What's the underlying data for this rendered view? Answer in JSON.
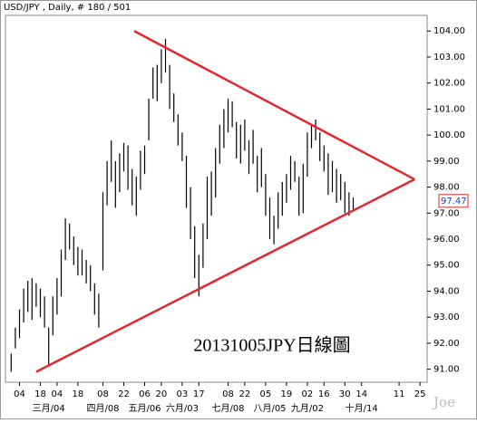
{
  "chart_data": {
    "type": "ohlc",
    "title": "USD/JPY , Daily, # 180 / 501",
    "annotation": "20131005JPY日線圖",
    "watermark": "Joe",
    "color": "#000000",
    "trend_color": "#e0282e",
    "categories": [
      null,
      null,
      "04",
      null,
      null,
      null,
      null,
      "18",
      null,
      null,
      null,
      "04",
      null,
      null,
      null,
      null,
      "18",
      null,
      null,
      null,
      null,
      null,
      "08",
      null,
      null,
      null,
      null,
      "22",
      null,
      null,
      null,
      null,
      "06",
      null,
      null,
      null,
      "20",
      null,
      null,
      null,
      null,
      "03",
      null,
      null,
      null,
      "17",
      null,
      null,
      null,
      null,
      null,
      null,
      "08",
      null,
      null,
      null,
      "22",
      null,
      null,
      null,
      null,
      "05",
      null,
      null,
      null,
      null,
      "19",
      null,
      null,
      null,
      null,
      "02",
      null,
      null,
      null,
      "16",
      null,
      null,
      null,
      null,
      "30",
      null,
      null,
      null,
      "14",
      null,
      null,
      null,
      null,
      null,
      null,
      null,
      null,
      "11",
      null,
      null,
      null,
      null,
      "25",
      null
    ],
    "month_labels": [
      null,
      null,
      null,
      null,
      null,
      null,
      null,
      null,
      null,
      "三月/04",
      null,
      null,
      null,
      null,
      null,
      null,
      null,
      null,
      null,
      null,
      null,
      null,
      "四月/08",
      null,
      null,
      null,
      null,
      null,
      null,
      null,
      null,
      null,
      "五月/06",
      null,
      null,
      null,
      null,
      null,
      null,
      null,
      null,
      "六月/03",
      null,
      null,
      null,
      null,
      null,
      null,
      null,
      null,
      null,
      null,
      "七月/08",
      null,
      null,
      null,
      null,
      null,
      null,
      null,
      null,
      null,
      "八月/05",
      null,
      null,
      null,
      null,
      null,
      null,
      null,
      null,
      "九月/02",
      null,
      null,
      null,
      null,
      null,
      null,
      null,
      null,
      null,
      null,
      null,
      null,
      "十月/14",
      null,
      null,
      null,
      null,
      null,
      null,
      null,
      null,
      null,
      null,
      null,
      null,
      null,
      null,
      null
    ],
    "high": [
      91.6,
      92.6,
      93.3,
      94.1,
      94.4,
      94.5,
      94.3,
      94.1,
      93.8,
      92.6,
      93.8,
      94.5,
      95.6,
      96.8,
      96.6,
      96.1,
      95.7,
      95.6,
      95.2,
      95.0,
      94.3,
      93.9,
      97.8,
      99.0,
      99.8,
      99.0,
      99.3,
      99.7,
      99.6,
      98.7,
      98.4,
      99.4,
      99.6,
      101.4,
      102.6,
      102.7,
      103.3,
      103.7,
      102.7,
      101.6,
      100.8,
      100.1,
      99.2,
      98.0,
      96.5,
      95.4,
      96.6,
      98.4,
      98.6,
      99.5,
      100.4,
      101.0,
      101.4,
      101.3,
      100.5,
      100.4,
      100.6,
      99.8,
      100.2,
      99.2,
      99.5,
      98.5,
      97.6,
      96.9,
      97.8,
      98.2,
      98.5,
      99.2,
      99.0,
      98.4,
      98.9,
      100.1,
      100.4,
      100.6,
      100.1,
      99.6,
      99.3,
      99.0,
      98.7,
      98.5,
      98.2,
      97.8,
      97.6,
      null,
      null,
      null,
      null,
      null,
      null,
      null,
      null,
      null,
      null,
      null,
      null,
      null,
      null,
      null,
      null,
      null
    ],
    "low": [
      90.9,
      91.8,
      92.2,
      92.8,
      93.2,
      92.9,
      93.4,
      93.0,
      92.6,
      91.1,
      92.3,
      93.1,
      93.8,
      95.2,
      95.6,
      95.0,
      94.6,
      94.6,
      94.3,
      94.0,
      93.1,
      92.6,
      94.8,
      97.3,
      98.2,
      97.2,
      97.8,
      98.6,
      97.9,
      97.3,
      96.9,
      97.9,
      98.5,
      99.8,
      101.4,
      101.3,
      102.0,
      102.4,
      101.0,
      100.5,
      99.6,
      99.0,
      97.2,
      96.0,
      94.5,
      93.8,
      94.9,
      96.0,
      96.9,
      97.6,
      98.9,
      99.5,
      100.1,
      100.3,
      99.1,
      98.9,
      99.4,
      98.5,
      98.9,
      97.8,
      98.0,
      96.9,
      96.0,
      95.8,
      96.4,
      96.9,
      97.4,
      97.9,
      98.2,
      96.9,
      97.0,
      98.4,
      99.5,
      99.8,
      99.0,
      98.6,
      97.7,
      97.8,
      97.4,
      97.5,
      97.0,
      96.9,
      97.1,
      null,
      null,
      null,
      null,
      null,
      null,
      null,
      null,
      null,
      null,
      null,
      null,
      null,
      null,
      null,
      null,
      null
    ],
    "trendlines": [
      {
        "x": [
          29.5,
          96.7
        ],
        "y": [
          104.0,
          98.3
        ]
      },
      {
        "x": [
          6,
          96.7
        ],
        "y": [
          90.9,
          98.3
        ]
      }
    ],
    "last_price": 97.47,
    "ylim": [
      90.5,
      104.6
    ],
    "yticks": [
      {
        "value": 91,
        "label": "91.00"
      },
      {
        "value": 92,
        "label": "92.00"
      },
      {
        "value": 93,
        "label": "93.00"
      },
      {
        "value": 94,
        "label": "94.00"
      },
      {
        "value": 95,
        "label": "95.00"
      },
      {
        "value": 96,
        "label": "96.00"
      },
      {
        "value": 97,
        "label": "97.00"
      },
      {
        "value": 98,
        "label": "98.00"
      },
      {
        "value": 99,
        "label": "99.00"
      },
      {
        "value": 100,
        "label": "100.00"
      },
      {
        "value": 101,
        "label": "101.00"
      },
      {
        "value": 102,
        "label": "102.00"
      },
      {
        "value": 103,
        "label": "103.00"
      },
      {
        "value": 104,
        "label": "104.00"
      }
    ]
  }
}
